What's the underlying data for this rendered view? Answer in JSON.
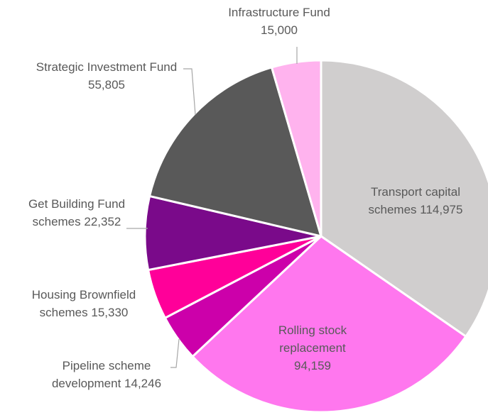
{
  "chart_data": {
    "type": "pie",
    "categories": [
      "Transport capital schemes",
      "Rolling stock replacement",
      "Pipeline scheme development",
      "Housing Brownfield schemes",
      "Get Building Fund schemes",
      "Strategic Investment Fund",
      "Infrastructure Fund"
    ],
    "values": [
      114975,
      94159,
      14246,
      15330,
      22352,
      55805,
      15000
    ],
    "value_labels": [
      "114,975",
      "94,159",
      "14,246",
      "15,330",
      "22,352",
      "55,805",
      "15,000"
    ],
    "colors": [
      "#d0cece",
      "#ff77ee",
      "#cc00aa",
      "#ff0099",
      "#7a0a8a",
      "#595959",
      "#ffb3ee"
    ]
  }
}
